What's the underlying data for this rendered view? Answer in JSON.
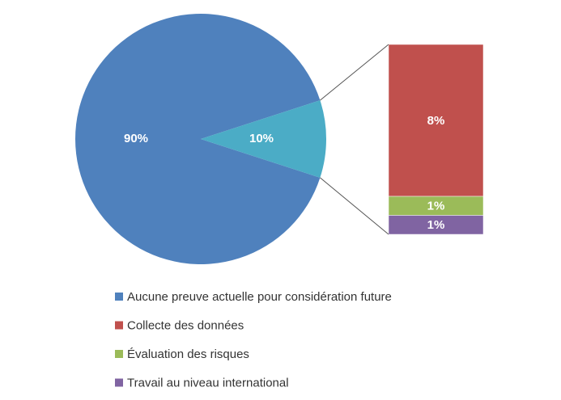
{
  "chart_data": {
    "type": "bar-of-pie",
    "pie": {
      "values": [
        90,
        10
      ],
      "value_labels": [
        "90%",
        "10%"
      ],
      "colors": [
        "#4f81bd",
        "#4bacc6"
      ]
    },
    "bar": {
      "values": [
        8,
        1,
        1
      ],
      "value_labels": [
        "8%",
        "1%",
        "1%"
      ],
      "colors": [
        "#c0504d",
        "#9bbb59",
        "#8064a2"
      ]
    },
    "legend": {
      "names": [
        "Aucune preuve actuelle pour considération future",
        "Collecte des données",
        "Évaluation des risques",
        "Travail au niveau international"
      ],
      "colors": [
        "#4f81bd",
        "#c0504d",
        "#9bbb59",
        "#8064a2"
      ]
    }
  }
}
